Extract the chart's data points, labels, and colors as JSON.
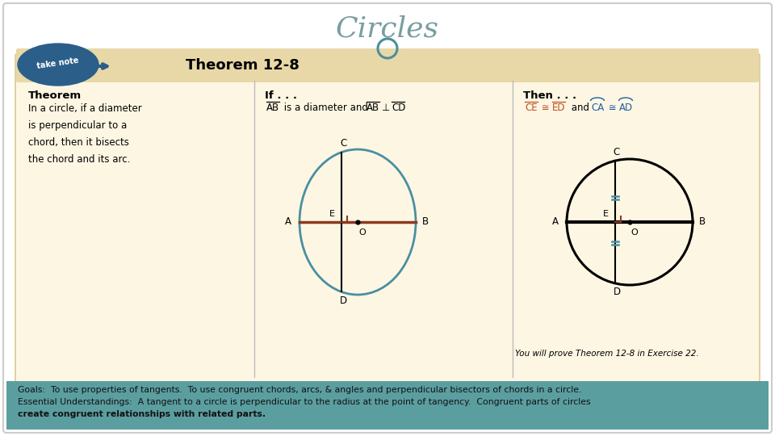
{
  "title": "Circles",
  "title_color": "#7a9ea0",
  "title_fontsize": 26,
  "bg_color": "#ffffff",
  "slide_border_color": "#cccccc",
  "header_bg": "#e8d8a8",
  "card_bg": "#fdf6e3",
  "card_border": "#d4c080",
  "teal_color": "#4a8fa0",
  "bottom_bg": "#5b9ea0",
  "bottom_text_color": "#111111",
  "theorem_title": "Theorem 12-8",
  "theorem_label": "Theorem",
  "theorem_body": "In a circle, if a diameter\nis perpendicular to a\nchord, then it bisects\nthe chord and its arc.",
  "if_label": "If . . .",
  "then_label": "Then . . .",
  "prove_text": "You will prove Theorem 12-8 in Exercise 22.",
  "goals_line1": "Goals:  To use properties of tangents.  To use congruent chords, arcs, & angles and perpendicular bisectors of chords in a circle.",
  "goals_line2": "Essential Understandings:  A tangent to a circle is perpendicular to the radius at the point of tangency.  Congruent parts of circles",
  "goals_line3": "create congruent relationships with related parts.",
  "circle_color_left": "#4a8fa0",
  "diameter_color": "#8b3a20",
  "right_angle_color": "#8b3a20",
  "tick_color": "#4a8fa0",
  "orange_color": "#c05020",
  "blue_color": "#2060a0",
  "take_note_color": "#2b5f8a"
}
